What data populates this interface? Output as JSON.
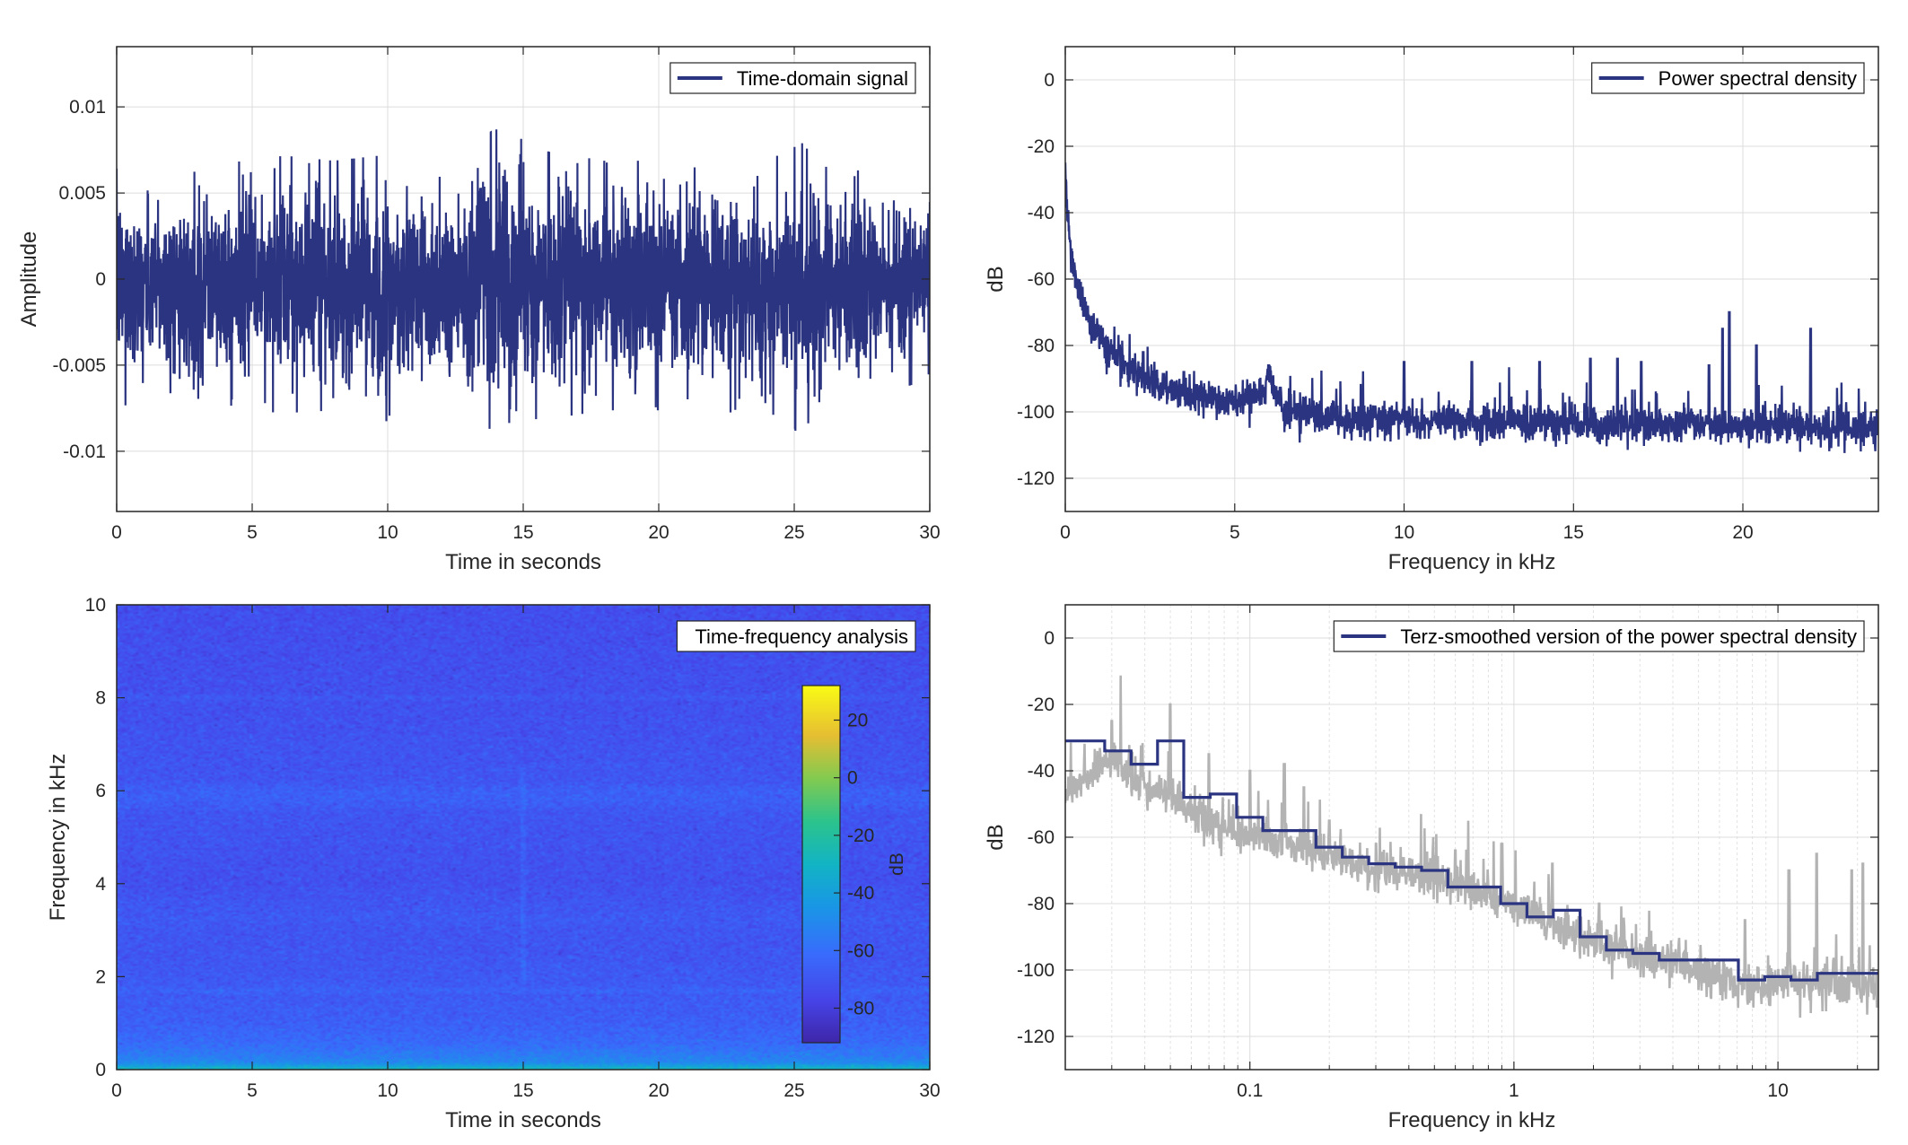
{
  "colors": {
    "series": "#2b3480",
    "raw": "#b3b3b3",
    "grid": "#dcdcdc",
    "axis": "#262626"
  },
  "chart_data": [
    {
      "id": "time",
      "type": "line",
      "xlabel": "Time in seconds",
      "ylabel": "Amplitude",
      "xlim": [
        0,
        30
      ],
      "ylim": [
        -0.0135,
        0.0135
      ],
      "xticks": [
        0,
        5,
        10,
        15,
        20,
        25,
        30
      ],
      "xtick_labels": [
        "0",
        "5",
        "10",
        "15",
        "20",
        "25",
        "30"
      ],
      "yticks": [
        0.01,
        0.005,
        0,
        -0.005,
        -0.01
      ],
      "ytick_labels": [
        "0.01",
        "0.005",
        "0",
        "-0.005",
        "-0.01"
      ],
      "grid": true,
      "legend": "top-right",
      "series": [
        {
          "name": "Time-domain signal",
          "envelope_t": [
            0,
            2,
            4,
            6,
            8,
            10,
            12,
            14,
            14.5,
            15,
            16,
            18,
            20,
            22,
            24,
            25.3,
            26,
            28,
            30
          ],
          "envelope_upper": [
            0.0065,
            0.005,
            0.006,
            0.0065,
            0.006,
            0.006,
            0.0065,
            0.0085,
            0.0092,
            0.0075,
            0.0065,
            0.006,
            0.006,
            0.0065,
            0.006,
            0.0065,
            0.0055,
            0.0055,
            0.0055
          ],
          "envelope_lower": [
            -0.008,
            -0.0075,
            -0.008,
            -0.0085,
            -0.0085,
            -0.0095,
            -0.0085,
            -0.009,
            -0.011,
            -0.0085,
            -0.009,
            -0.0085,
            -0.0085,
            -0.0085,
            -0.0085,
            -0.0105,
            -0.0085,
            -0.0075,
            -0.006
          ]
        }
      ]
    },
    {
      "id": "psd",
      "type": "line",
      "xlabel": "Frequency in kHz",
      "ylabel": "dB",
      "xlim": [
        0,
        24
      ],
      "ylim": [
        -130,
        10
      ],
      "xticks": [
        0,
        5,
        10,
        15,
        20
      ],
      "xtick_labels": [
        "0",
        "5",
        "10",
        "15",
        "20"
      ],
      "yticks": [
        0,
        -20,
        -40,
        -60,
        -80,
        -100,
        -120
      ],
      "ytick_labels": [
        "0",
        "-20",
        "-40",
        "-60",
        "-80",
        "-100",
        "-120"
      ],
      "grid": true,
      "legend": "top-right",
      "series": [
        {
          "name": "Power spectral density",
          "base_f": [
            0,
            0.05,
            0.2,
            0.5,
            1,
            1.5,
            2,
            3,
            4,
            5,
            5.8,
            6,
            6.5,
            8,
            12,
            16,
            20,
            24
          ],
          "base_db": [
            -25,
            -40,
            -55,
            -68,
            -78,
            -84,
            -88,
            -93,
            -96,
            -97,
            -95,
            -90,
            -100,
            -102,
            -103,
            -104,
            -104,
            -105
          ],
          "peaks_f": [
            0.7,
            1.1,
            1.6,
            2.3,
            3.5,
            6,
            10,
            12,
            14,
            15.5,
            16.3,
            17,
            19,
            19.4,
            19.6,
            20.4,
            22
          ],
          "peaks_db": [
            -72,
            -75,
            -80,
            -82,
            -88,
            -86,
            -85,
            -85,
            -85,
            -84,
            -84,
            -85,
            -86,
            -75,
            -70,
            -80,
            -75
          ]
        }
      ]
    },
    {
      "id": "spectrogram",
      "type": "heatmap",
      "xlabel": "Time in seconds",
      "ylabel": "Frequency in kHz",
      "xlim": [
        0,
        30
      ],
      "ylim": [
        0,
        10
      ],
      "xticks": [
        0,
        5,
        10,
        15,
        20,
        25,
        30
      ],
      "xtick_labels": [
        "0",
        "5",
        "10",
        "15",
        "20",
        "25",
        "30"
      ],
      "yticks": [
        10,
        8,
        6,
        4,
        2,
        0
      ],
      "ytick_labels": [
        "10",
        "8",
        "6",
        "4",
        "2",
        "0"
      ],
      "legend": "top-right",
      "legend_label": "Time-frequency analysis",
      "colorbar": {
        "label": "dB",
        "clim": [
          -92,
          32
        ],
        "ticks": [
          20,
          0,
          -20,
          -40,
          -60,
          -80
        ],
        "tick_labels": [
          "20",
          "0",
          "-20",
          "-40",
          "-60",
          "-80"
        ],
        "colormap": "parula"
      },
      "profile_freq_khz": [
        0,
        0.05,
        0.15,
        0.3,
        0.6,
        1,
        1.6,
        1.7,
        1.8,
        2.5,
        3,
        3.2,
        4,
        5.5,
        5.8,
        6,
        6.2,
        7.9,
        8,
        8.1,
        10
      ],
      "profile_db": [
        -25,
        -35,
        -50,
        -55,
        -62,
        -66,
        -68,
        -64,
        -68,
        -70,
        -70,
        -68,
        -72,
        -70,
        -66,
        -66,
        -70,
        -72,
        -69,
        -72,
        -73
      ]
    },
    {
      "id": "terz",
      "type": "line",
      "xscale": "log",
      "xlabel": "Frequency in kHz",
      "ylabel": "dB",
      "xlim": [
        0.02,
        24
      ],
      "ylim": [
        -130,
        10
      ],
      "xticks": [
        0.1,
        1,
        10
      ],
      "xtick_labels": [
        "0.1",
        "1",
        "10"
      ],
      "yticks": [
        0,
        -20,
        -40,
        -60,
        -80,
        -100,
        -120
      ],
      "ytick_labels": [
        "0",
        "-20",
        "-40",
        "-60",
        "-80",
        "-100",
        "-120"
      ],
      "grid": true,
      "legend": "top-right",
      "series": [
        {
          "name": "Terz-smoothed version of the power spectral density",
          "band_edges_khz": [
            0.02,
            0.0224,
            0.0282,
            0.0355,
            0.0447,
            0.0562,
            0.0708,
            0.0891,
            0.112,
            0.141,
            0.178,
            0.224,
            0.282,
            0.355,
            0.447,
            0.562,
            0.708,
            0.891,
            1.12,
            1.41,
            1.78,
            2.24,
            2.82,
            3.55,
            4.47,
            5.62,
            7.08,
            8.91,
            11.2,
            14.1,
            17.8,
            24
          ],
          "band_db": [
            -31,
            -31,
            -34,
            -38,
            -31,
            -48,
            -47,
            -54,
            -58,
            -58,
            -63,
            -66,
            -68,
            -69,
            -70,
            -75,
            -75,
            -80,
            -84,
            -82,
            -90,
            -94,
            -95,
            -97,
            -97,
            -97,
            -103,
            -102,
            -103,
            -101,
            -101
          ]
        },
        {
          "name": "",
          "raw_f_khz": [
            0.02,
            0.025,
            0.03,
            0.035,
            0.05,
            0.07,
            0.1,
            0.15,
            0.2,
            0.3,
            0.5,
            0.7,
            1,
            1.5,
            2,
            3,
            5,
            7,
            10,
            15,
            24
          ],
          "raw_db": [
            -48,
            -42,
            -35,
            -42,
            -48,
            -55,
            -60,
            -62,
            -65,
            -70,
            -72,
            -76,
            -80,
            -87,
            -92,
            -95,
            -100,
            -105,
            -103,
            -104,
            -105
          ],
          "raw_peaks_f_khz": [
            0.03,
            0.05,
            0.07,
            0.1,
            0.135,
            0.16,
            0.2,
            0.3,
            0.6,
            0.9,
            1.4,
            2.1,
            7.5,
            11,
            14,
            19,
            21
          ],
          "raw_peaks_db": [
            -25,
            -20,
            -35,
            -40,
            -38,
            -45,
            -55,
            -62,
            -64,
            -62,
            -68,
            -80,
            -85,
            -70,
            -65,
            -70,
            -68
          ]
        }
      ]
    }
  ]
}
